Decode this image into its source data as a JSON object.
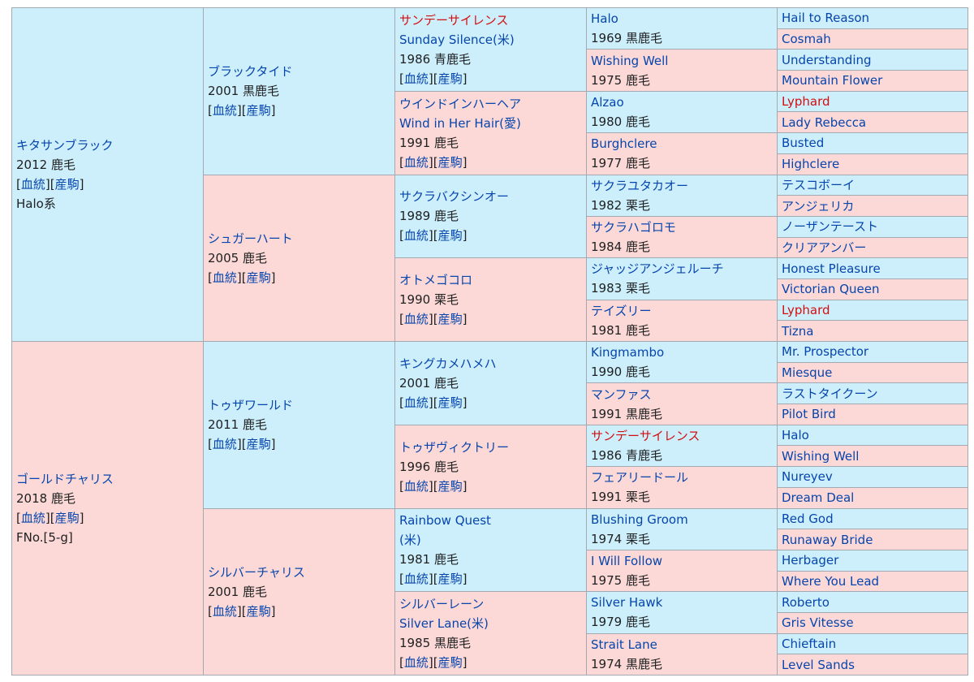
{
  "bracket_open": "[",
  "bracket_close": "]",
  "gen1": [
    {
      "name": "キタサンブラック",
      "year": "2012 鹿毛",
      "link1": "血統",
      "link2": "産駒",
      "extra": "Halo系"
    },
    {
      "name": "ゴールドチャリス",
      "year": "2018 鹿毛",
      "link1": "血統",
      "link2": "産駒",
      "extra": "FNo.[5-g]"
    }
  ],
  "gen2": [
    {
      "name": "ブラックタイド",
      "year": "2001 黒鹿毛",
      "link1": "血統",
      "link2": "産駒"
    },
    {
      "name": "シュガーハート",
      "year": "2005 鹿毛",
      "link1": "血統",
      "link2": "産駒"
    },
    {
      "name": "トゥザワールド",
      "year": "2011 鹿毛",
      "link1": "血統",
      "link2": "産駒"
    },
    {
      "name": "シルバーチャリス",
      "year": "2001 鹿毛",
      "link1": "血統",
      "link2": "産駒"
    }
  ],
  "gen3": [
    {
      "name": "サンデーサイレンス",
      "name2": "Sunday Silence(米)",
      "year": "1986 青鹿毛",
      "link1": "血統",
      "link2": "産駒"
    },
    {
      "name": "ウインドインハーヘア",
      "name2": "Wind in Her Hair(愛)",
      "year": "1991 鹿毛",
      "link1": "血統",
      "link2": "産駒"
    },
    {
      "name": "サクラバクシンオー",
      "year": "1989 鹿毛",
      "link1": "血統",
      "link2": "産駒"
    },
    {
      "name": "オトメゴコロ",
      "year": "1990 栗毛",
      "link1": "血統",
      "link2": "産駒"
    },
    {
      "name": "キングカメハメハ",
      "year": "2001 鹿毛",
      "link1": "血統",
      "link2": "産駒"
    },
    {
      "name": "トゥザヴィクトリー",
      "year": "1996 鹿毛",
      "link1": "血統",
      "link2": "産駒"
    },
    {
      "name": "Rainbow Quest",
      "name2": "(米)",
      "year": "1981 鹿毛",
      "link1": "血統",
      "link2": "産駒"
    },
    {
      "name": "シルバーレーン",
      "name2": "Silver Lane(米)",
      "year": "1985 黒鹿毛",
      "link1": "血統",
      "link2": "産駒"
    }
  ],
  "gen4": [
    {
      "name": "Halo",
      "year": "1969 黒鹿毛"
    },
    {
      "name": "Wishing Well",
      "year": "1975 鹿毛"
    },
    {
      "name": "Alzao",
      "year": "1980 鹿毛"
    },
    {
      "name": "Burghclere",
      "year": "1977 鹿毛"
    },
    {
      "name": "サクラユタカオー",
      "year": "1982 栗毛"
    },
    {
      "name": "サクラハゴロモ",
      "year": "1984 鹿毛"
    },
    {
      "name": "ジャッジアンジェルーチ",
      "year": "1983 栗毛"
    },
    {
      "name": "テイズリー",
      "year": "1981 鹿毛"
    },
    {
      "name": "Kingmambo",
      "year": "1990 鹿毛"
    },
    {
      "name": "マンファス",
      "year": "1991 黒鹿毛"
    },
    {
      "name": "サンデーサイレンス",
      "year": "1986 青鹿毛"
    },
    {
      "name": "フェアリードール",
      "year": "1991 栗毛"
    },
    {
      "name": "Blushing Groom",
      "year": "1974 栗毛"
    },
    {
      "name": "I Will Follow",
      "year": "1975 鹿毛"
    },
    {
      "name": "Silver Hawk",
      "year": "1979 鹿毛"
    },
    {
      "name": "Strait Lane",
      "year": "1974 黒鹿毛"
    }
  ],
  "gen5": [
    "Hail to Reason",
    "Cosmah",
    "Understanding",
    "Mountain Flower",
    "Lyphard",
    "Lady Rebecca",
    "Busted",
    "Highclere",
    "テスコボーイ",
    "アンジェリカ",
    "ノーザンテースト",
    "クリアアンバー",
    "Honest Pleasure",
    "Victorian Queen",
    "Lyphard",
    "Tizna",
    "Mr. Prospector",
    "Miesque",
    "ラストタイクーン",
    "Pilot Bird",
    "Halo",
    "Wishing Well",
    "Nureyev",
    "Dream Deal",
    "Red God",
    "Runaway Bride",
    "Herbager",
    "Where You Lead",
    "Roberto",
    "Gris Vitesse",
    "Chieftain",
    "Level Sands"
  ],
  "colors": {
    "sire_bg": "#cdeffc",
    "dam_bg": "#fcd9d6",
    "link": "#0645ad",
    "red_link": "#d20f0f",
    "border": "#a2a9b1"
  }
}
